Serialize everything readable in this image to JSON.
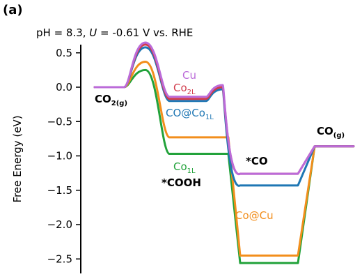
{
  "panel_label": "(a)",
  "chart_data": {
    "type": "line",
    "title_parts": [
      "pH = 8.3, ",
      "U",
      " = -0.61 V vs. RHE"
    ],
    "ylabel": "Free Energy (eV)",
    "xlabel": "",
    "ylim": [
      -2.75,
      0.75
    ],
    "yticks": [
      0.5,
      0.0,
      -0.5,
      -1.0,
      -1.5,
      -2.0,
      -2.5
    ],
    "ytick_labels": [
      "0.5",
      "0.0",
      "−0.5",
      "−1.0",
      "−1.5",
      "−2.0",
      "−2.5"
    ],
    "x_axis_visible": false,
    "grid": false,
    "state_labels": {
      "co2": {
        "main": "CO",
        "sub": "2(g)"
      },
      "cooh": {
        "main": "*COOH"
      },
      "co_ads": {
        "main": "*CO"
      },
      "co_gas": {
        "main": "CO",
        "sub": "(g)"
      }
    },
    "states": [
      "CO2(g)",
      "TS1",
      "*COOH",
      "TS2",
      "*CO",
      "CO(g)"
    ],
    "series": [
      {
        "name": "Cu",
        "color": "#bb6bd9",
        "label_main": "Cu",
        "label_sub": "",
        "values": [
          0.0,
          0.65,
          -0.14,
          0.03,
          -1.26,
          -0.86
        ]
      },
      {
        "name": "Co2L",
        "color": "#d13b4b",
        "label_main": "Co",
        "label_sub": "2L",
        "values": [
          0.0,
          0.62,
          -0.17,
          0.0,
          -1.26,
          -0.86
        ]
      },
      {
        "name": "CO@Co1L",
        "color": "#1f77b4",
        "label_main": "CO@Co",
        "label_sub": "1L",
        "values": [
          0.0,
          0.58,
          -0.2,
          -0.03,
          -1.43,
          -0.86
        ]
      },
      {
        "name": "Co@Cu",
        "color": "#f28e1c",
        "label_main": "Co@Cu",
        "label_sub": "",
        "values": [
          0.0,
          0.37,
          -0.73,
          -0.73,
          -2.45,
          -0.86
        ]
      },
      {
        "name": "Co1L",
        "color": "#22a23a",
        "label_main": "Co",
        "label_sub": "1L",
        "values": [
          0.0,
          0.25,
          -0.97,
          -0.97,
          -2.56,
          -0.86
        ]
      }
    ]
  }
}
